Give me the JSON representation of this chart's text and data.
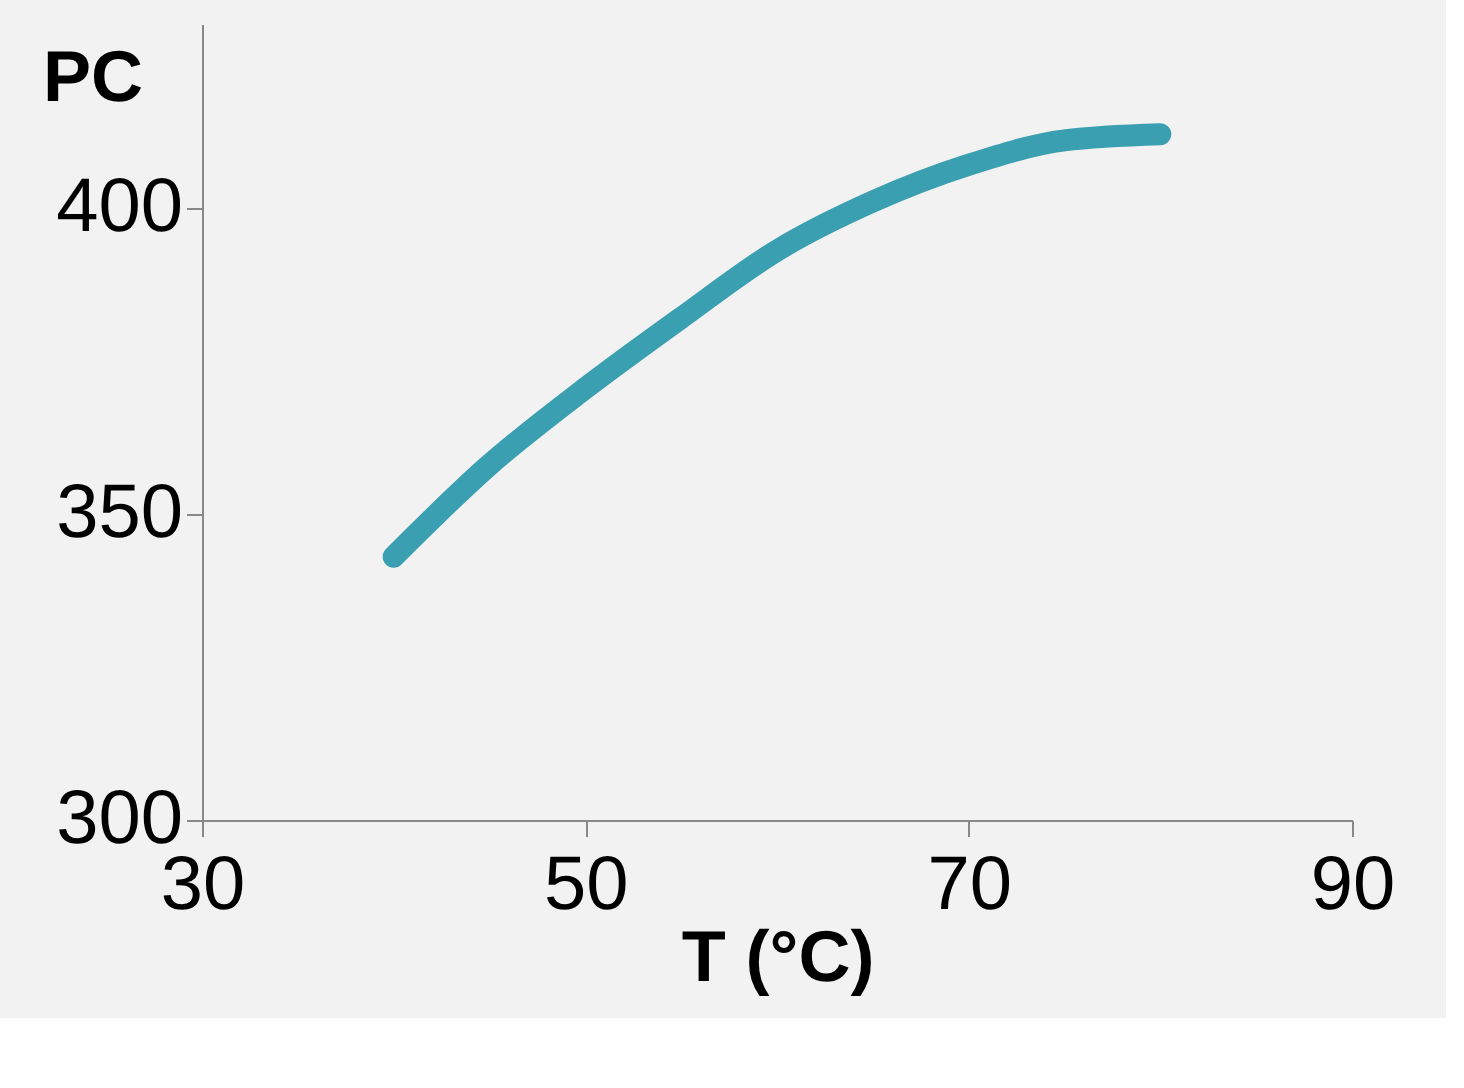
{
  "chart_data": {
    "type": "line",
    "xlabel": "T (°C)",
    "ylabel": "PC",
    "x": [
      40,
      45,
      50,
      55,
      60,
      65,
      70,
      75,
      80
    ],
    "series": [
      {
        "color": "#3a9fb0",
        "values": [
          343,
          358,
          370.5,
          382,
          393,
          401,
          407,
          411,
          412
        ]
      }
    ],
    "xlim": [
      30,
      90
    ],
    "xticks": [
      30,
      50,
      70,
      90
    ],
    "ylim": [
      300,
      430
    ],
    "yticks": [
      300,
      350,
      400
    ],
    "grid": false,
    "legend": false,
    "line_style": "solid"
  }
}
